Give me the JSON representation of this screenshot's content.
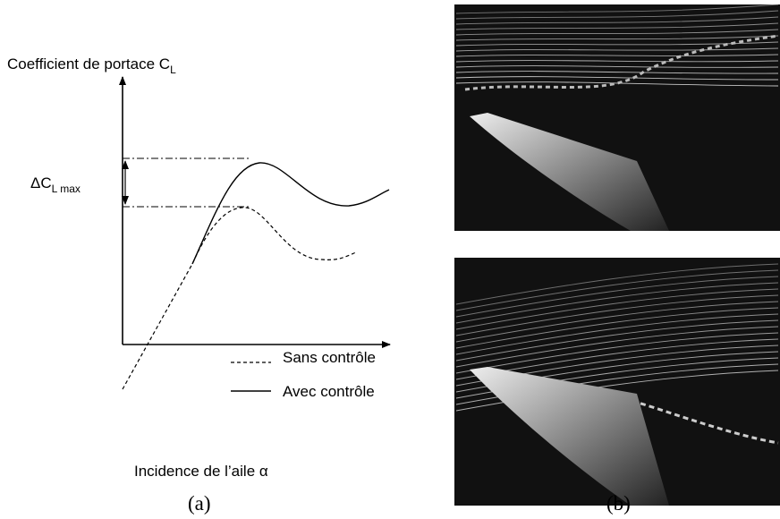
{
  "panel_a": {
    "y_axis_label": {
      "text": "Coefficient de portace C",
      "subscript": "L"
    },
    "delta_label": {
      "text": "ΔC",
      "subscript": "L max"
    },
    "legend": [
      "Sans contrôle",
      "Avec contrôle"
    ],
    "x_axis_label": "Incidence de l’aile α",
    "caption": "(a)"
  },
  "panel_b": {
    "caption": "(b)"
  }
}
